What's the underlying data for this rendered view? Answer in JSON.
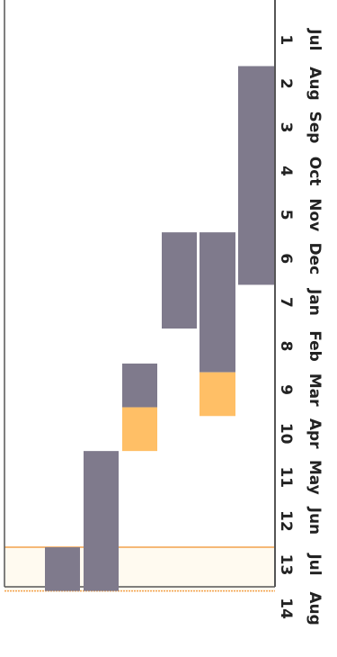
{
  "chart_data": {
    "type": "bar",
    "orientation": "gantt",
    "title": "",
    "month_labels": [
      "Jul",
      "Aug",
      "Sep",
      "Oct",
      "Nov",
      "Dec",
      "Jan",
      "Feb",
      "Mar",
      "Apr",
      "May",
      "Jun",
      "Jul",
      "Aug"
    ],
    "period_labels": [
      "1",
      "2",
      "3",
      "4",
      "5",
      "6",
      "7",
      "8",
      "9",
      "10",
      "11",
      "12",
      "13",
      "14"
    ],
    "tasks": [
      {
        "segments": [
          {
            "start": 1.6,
            "end": 6.6,
            "color": "#7f7a8c"
          }
        ]
      },
      {
        "segments": [
          {
            "start": 5.4,
            "end": 8.6,
            "color": "#7f7a8c"
          },
          {
            "start": 8.6,
            "end": 9.6,
            "color": "#ffbf66"
          }
        ]
      },
      {
        "segments": [
          {
            "start": 5.4,
            "end": 7.6,
            "color": "#7f7a8c"
          }
        ]
      },
      {
        "segments": [
          {
            "start": 8.4,
            "end": 9.4,
            "color": "#7f7a8c"
          },
          {
            "start": 9.4,
            "end": 10.4,
            "color": "#ffbf66"
          }
        ]
      },
      {
        "segments": [
          {
            "start": 10.4,
            "end": 13.6,
            "color": "#7f7a8c"
          }
        ]
      },
      {
        "segments": [
          {
            "start": 12.6,
            "end": 13.6,
            "color": "#7f7a8c"
          }
        ]
      }
    ],
    "highlight": {
      "start": 12.6,
      "end": 13.6,
      "color": "#f3a24c"
    },
    "colors": {
      "work": "#7f7a8c",
      "buffer": "#ffbf66",
      "axis": "#555555"
    }
  }
}
